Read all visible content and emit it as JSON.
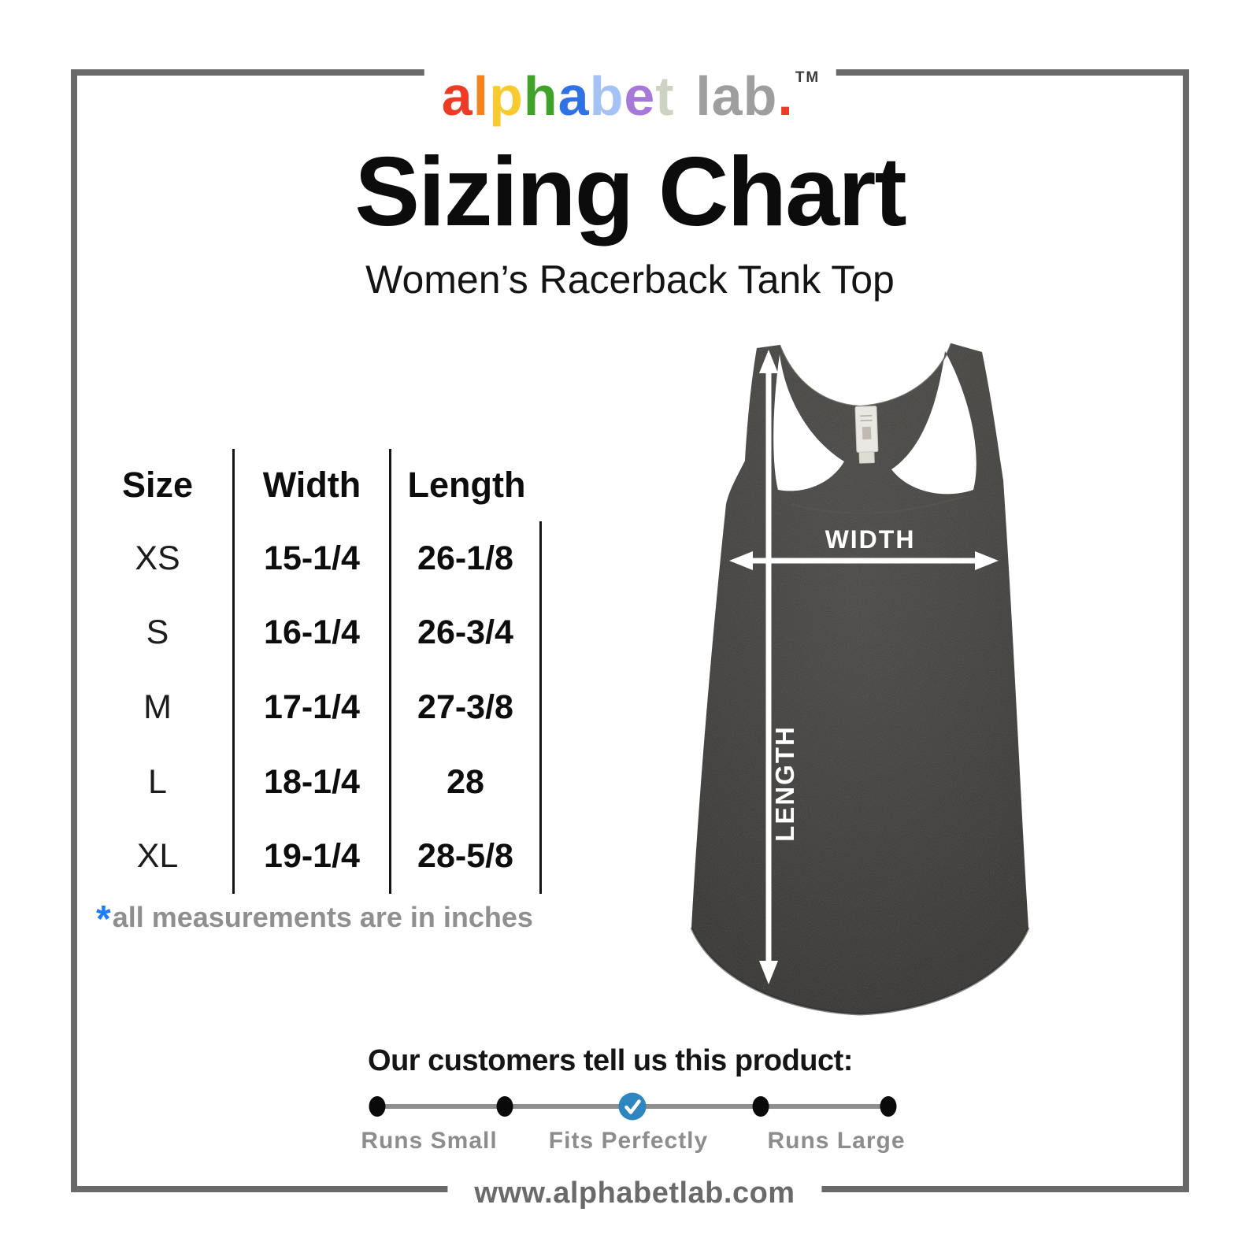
{
  "logo": {
    "letters": [
      {
        "char": "a",
        "color": "#ed3b25"
      },
      {
        "char": "l",
        "color": "#f8821d"
      },
      {
        "char": "p",
        "color": "#f9ca30"
      },
      {
        "char": "h",
        "color": "#3fa32a"
      },
      {
        "char": "a",
        "color": "#2f72e4"
      },
      {
        "char": "b",
        "color": "#a4c2f4"
      },
      {
        "char": "e",
        "color": "#a678d8"
      },
      {
        "char": "t",
        "color": "#ccd3c2"
      },
      {
        "char": " ",
        "color": "#9e9e9e"
      },
      {
        "char": "l",
        "color": "#9e9e9e"
      },
      {
        "char": "a",
        "color": "#9e9e9e"
      },
      {
        "char": "b",
        "color": "#9e9e9e"
      },
      {
        "char": ".",
        "color": "#ed3b25"
      }
    ],
    "trademark": "TM"
  },
  "title": "Sizing Chart",
  "subtitle": "Women’s Racerback Tank Top",
  "chart_data": {
    "type": "table",
    "title": "Sizing Chart",
    "subtitle": "Women’s Racerback Tank Top",
    "columns": [
      "Size",
      "Width",
      "Length"
    ],
    "rows": [
      {
        "size": "XS",
        "width": "15-1/4",
        "length": "26-1/8"
      },
      {
        "size": "S",
        "width": "16-1/4",
        "length": "26-3/4"
      },
      {
        "size": "M",
        "width": "17-1/4",
        "length": "27-3/8"
      },
      {
        "size": "L",
        "width": "18-1/4",
        "length": "28"
      },
      {
        "size": "XL",
        "width": "19-1/4",
        "length": "28-5/8"
      }
    ],
    "units_note": "all measurements are in inches"
  },
  "size_table": {
    "columns": [
      "Size",
      "Width",
      "Length"
    ],
    "rows": [
      {
        "size": "XS",
        "width": "15-1/4",
        "length": "26-1/8"
      },
      {
        "size": "S",
        "width": "16-1/4",
        "length": "26-3/4"
      },
      {
        "size": "M",
        "width": "17-1/4",
        "length": "27-3/8"
      },
      {
        "size": "L",
        "width": "18-1/4",
        "length": "28"
      },
      {
        "size": "XL",
        "width": "19-1/4",
        "length": "28-5/8"
      }
    ],
    "footnote_marker": "*",
    "footnote_marker_color": "#1f7ef6",
    "footnote_text": "all measurements are in inches"
  },
  "diagram": {
    "width_label": "WIDTH",
    "length_label": "LENGTH",
    "shirt_color": "#3a3836"
  },
  "fit_feedback": {
    "heading": "Our customers tell us this product:",
    "options": [
      "Runs Small",
      "Fits Perfectly",
      "Runs Large"
    ],
    "selected_option": "Fits Perfectly",
    "selected_color": "#2e86c0"
  },
  "footer": {
    "website": "www.alphabetlab.com"
  }
}
